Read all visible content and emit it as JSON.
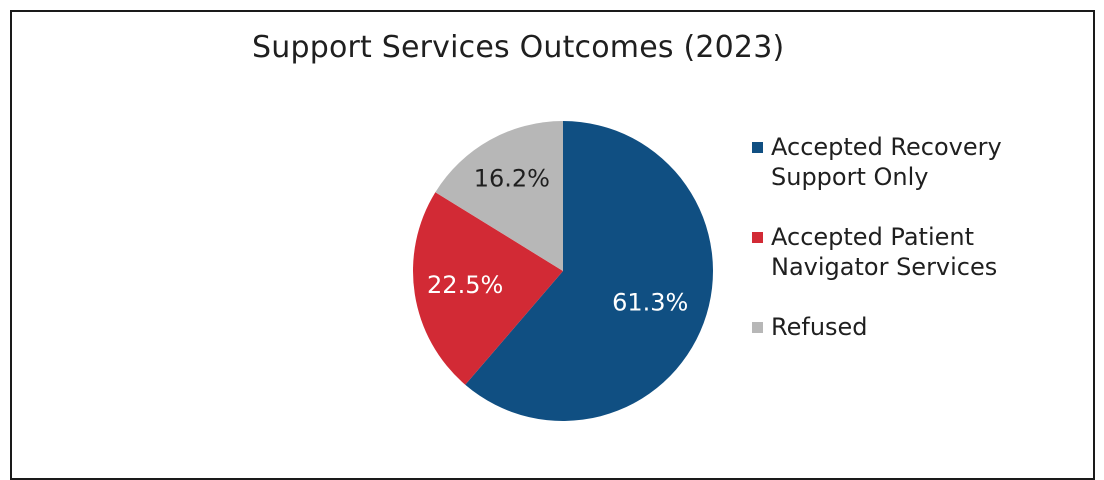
{
  "chart_data": {
    "type": "pie",
    "title": "Support Services Outcomes (2023)",
    "slices": [
      {
        "label": "Accepted Recovery Support Only",
        "legend_text": "Accepted Recovery\nSupport Only",
        "value": 61.3,
        "value_label": "61.3%",
        "color": "#104f82",
        "label_color": "#ffffff"
      },
      {
        "label": "Accepted Patient Navigator Services",
        "legend_text": "Accepted Patient\nNavigator Services",
        "value": 22.5,
        "value_label": "22.5%",
        "color": "#d22a35",
        "label_color": "#ffffff"
      },
      {
        "label": "Refused",
        "legend_text": "Refused",
        "value": 16.2,
        "value_label": "16.2%",
        "color": "#b7b7b7",
        "label_color": "#1f1f1f"
      }
    ],
    "legend_position": "right",
    "start_angle": "12 o'clock",
    "direction": "clockwise"
  }
}
